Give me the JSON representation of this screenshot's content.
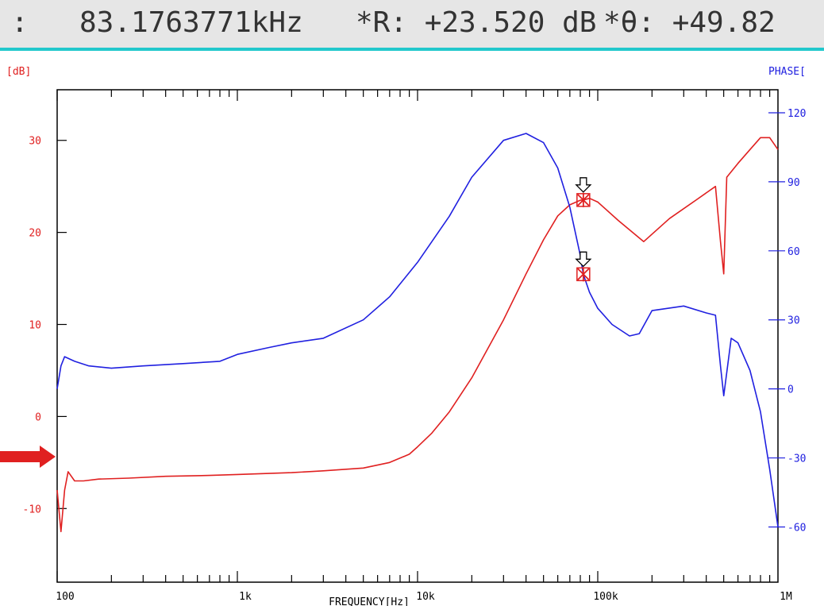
{
  "readout": {
    "prefix": ":",
    "frequency": "83.1763771kHz",
    "r": "*R: +23.520 dB",
    "theta": "*θ: +49.82"
  },
  "chart_data": {
    "type": "line",
    "xlabel": "FREQUENCY[Hz]",
    "ylabel_left": "[dB]",
    "ylabel_right": "PHASE[",
    "x_scale": "log",
    "xlim": [
      100,
      1000000
    ],
    "ylim_left": [
      -18,
      35.5
    ],
    "ylim_right": [
      -84,
      130
    ],
    "x_ticks": [
      {
        "value": 100,
        "label": "100"
      },
      {
        "value": 1000,
        "label": "1k"
      },
      {
        "value": 10000,
        "label": "10k"
      },
      {
        "value": 100000,
        "label": "100k"
      },
      {
        "value": 1000000,
        "label": "1M"
      }
    ],
    "y_ticks_left": [
      -10,
      0,
      10,
      20,
      30
    ],
    "y_ticks_right": [
      -60,
      -30,
      0,
      30,
      60,
      90,
      120
    ],
    "grid": false,
    "series": [
      {
        "axis": "left",
        "color": "#e02020",
        "x": [
          100,
          105,
          110,
          115,
          125,
          140,
          170,
          250,
          400,
          700,
          1000,
          2000,
          3000,
          5000,
          7000,
          9000,
          10000,
          12000,
          15000,
          20000,
          30000,
          40000,
          50000,
          60000,
          70000,
          80000,
          83176,
          90000,
          100000,
          130000,
          180000,
          250000,
          350000,
          450000,
          480000,
          500000,
          520000,
          600000,
          700000,
          800000,
          900000,
          1000000
        ],
        "y": [
          -8,
          -12.5,
          -8,
          -6,
          -7,
          -7,
          -6.8,
          -6.7,
          -6.5,
          -6.4,
          -6.3,
          -6.1,
          -5.9,
          -5.6,
          -5,
          -4.1,
          -3.3,
          -1.8,
          0.5,
          4.2,
          10.5,
          15.5,
          19.2,
          21.8,
          23,
          23.5,
          23.52,
          23.7,
          23.3,
          21.3,
          19,
          21.5,
          23.5,
          25,
          19,
          15.5,
          26,
          27.5,
          29,
          30.3,
          30.3,
          29
        ]
      },
      {
        "axis": "right",
        "color": "#2020e0",
        "x": [
          100,
          105,
          110,
          125,
          150,
          200,
          300,
          500,
          800,
          1000,
          1500,
          2000,
          3000,
          5000,
          7000,
          10000,
          15000,
          20000,
          30000,
          40000,
          50000,
          60000,
          70000,
          80000,
          83176,
          90000,
          100000,
          120000,
          150000,
          170000,
          200000,
          300000,
          400000,
          450000,
          480000,
          500000,
          550000,
          600000,
          700000,
          800000,
          900000,
          1000000
        ],
        "y": [
          0,
          10,
          14,
          12,
          10,
          9,
          10,
          11,
          12,
          15,
          18,
          20,
          22,
          30,
          40,
          55,
          75,
          92,
          108,
          111,
          107,
          96,
          79,
          58,
          49.82,
          42,
          35,
          28,
          23,
          24,
          34,
          36,
          33,
          32,
          10,
          -3,
          22,
          20,
          8,
          -10,
          -35,
          -60
        ]
      }
    ],
    "markers": [
      {
        "x": 83176,
        "y": 23.52,
        "axis": "left"
      },
      {
        "x": 83176,
        "y": 49.82,
        "axis": "right"
      }
    ]
  }
}
